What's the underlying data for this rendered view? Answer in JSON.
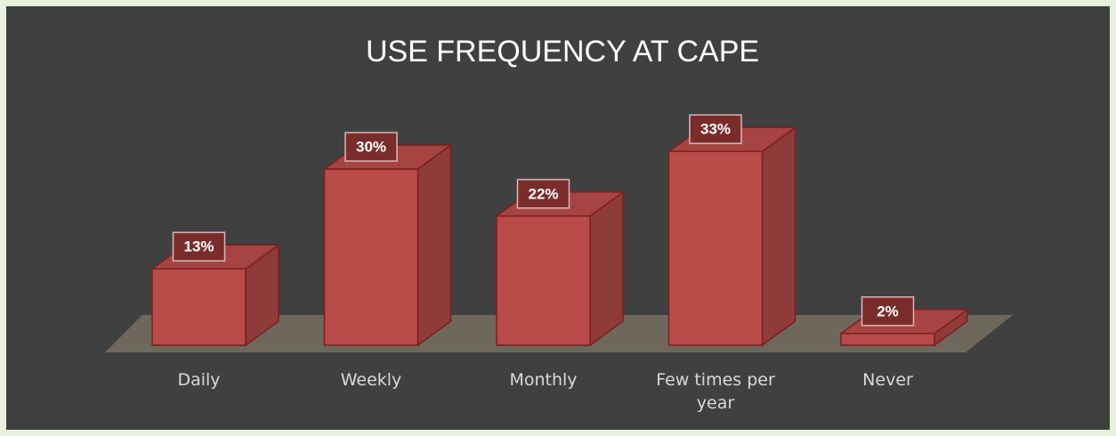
{
  "chart_data": {
    "type": "bar3d",
    "title": "USE FREQUENCY AT CAPE",
    "categories": [
      "Daily",
      "Weekly",
      "Monthly",
      "Few times per year",
      "Never"
    ],
    "values": [
      13,
      30,
      22,
      33,
      2
    ],
    "value_labels": [
      "13%",
      "30%",
      "22%",
      "33%",
      "2%"
    ],
    "color": "#b94b48"
  }
}
